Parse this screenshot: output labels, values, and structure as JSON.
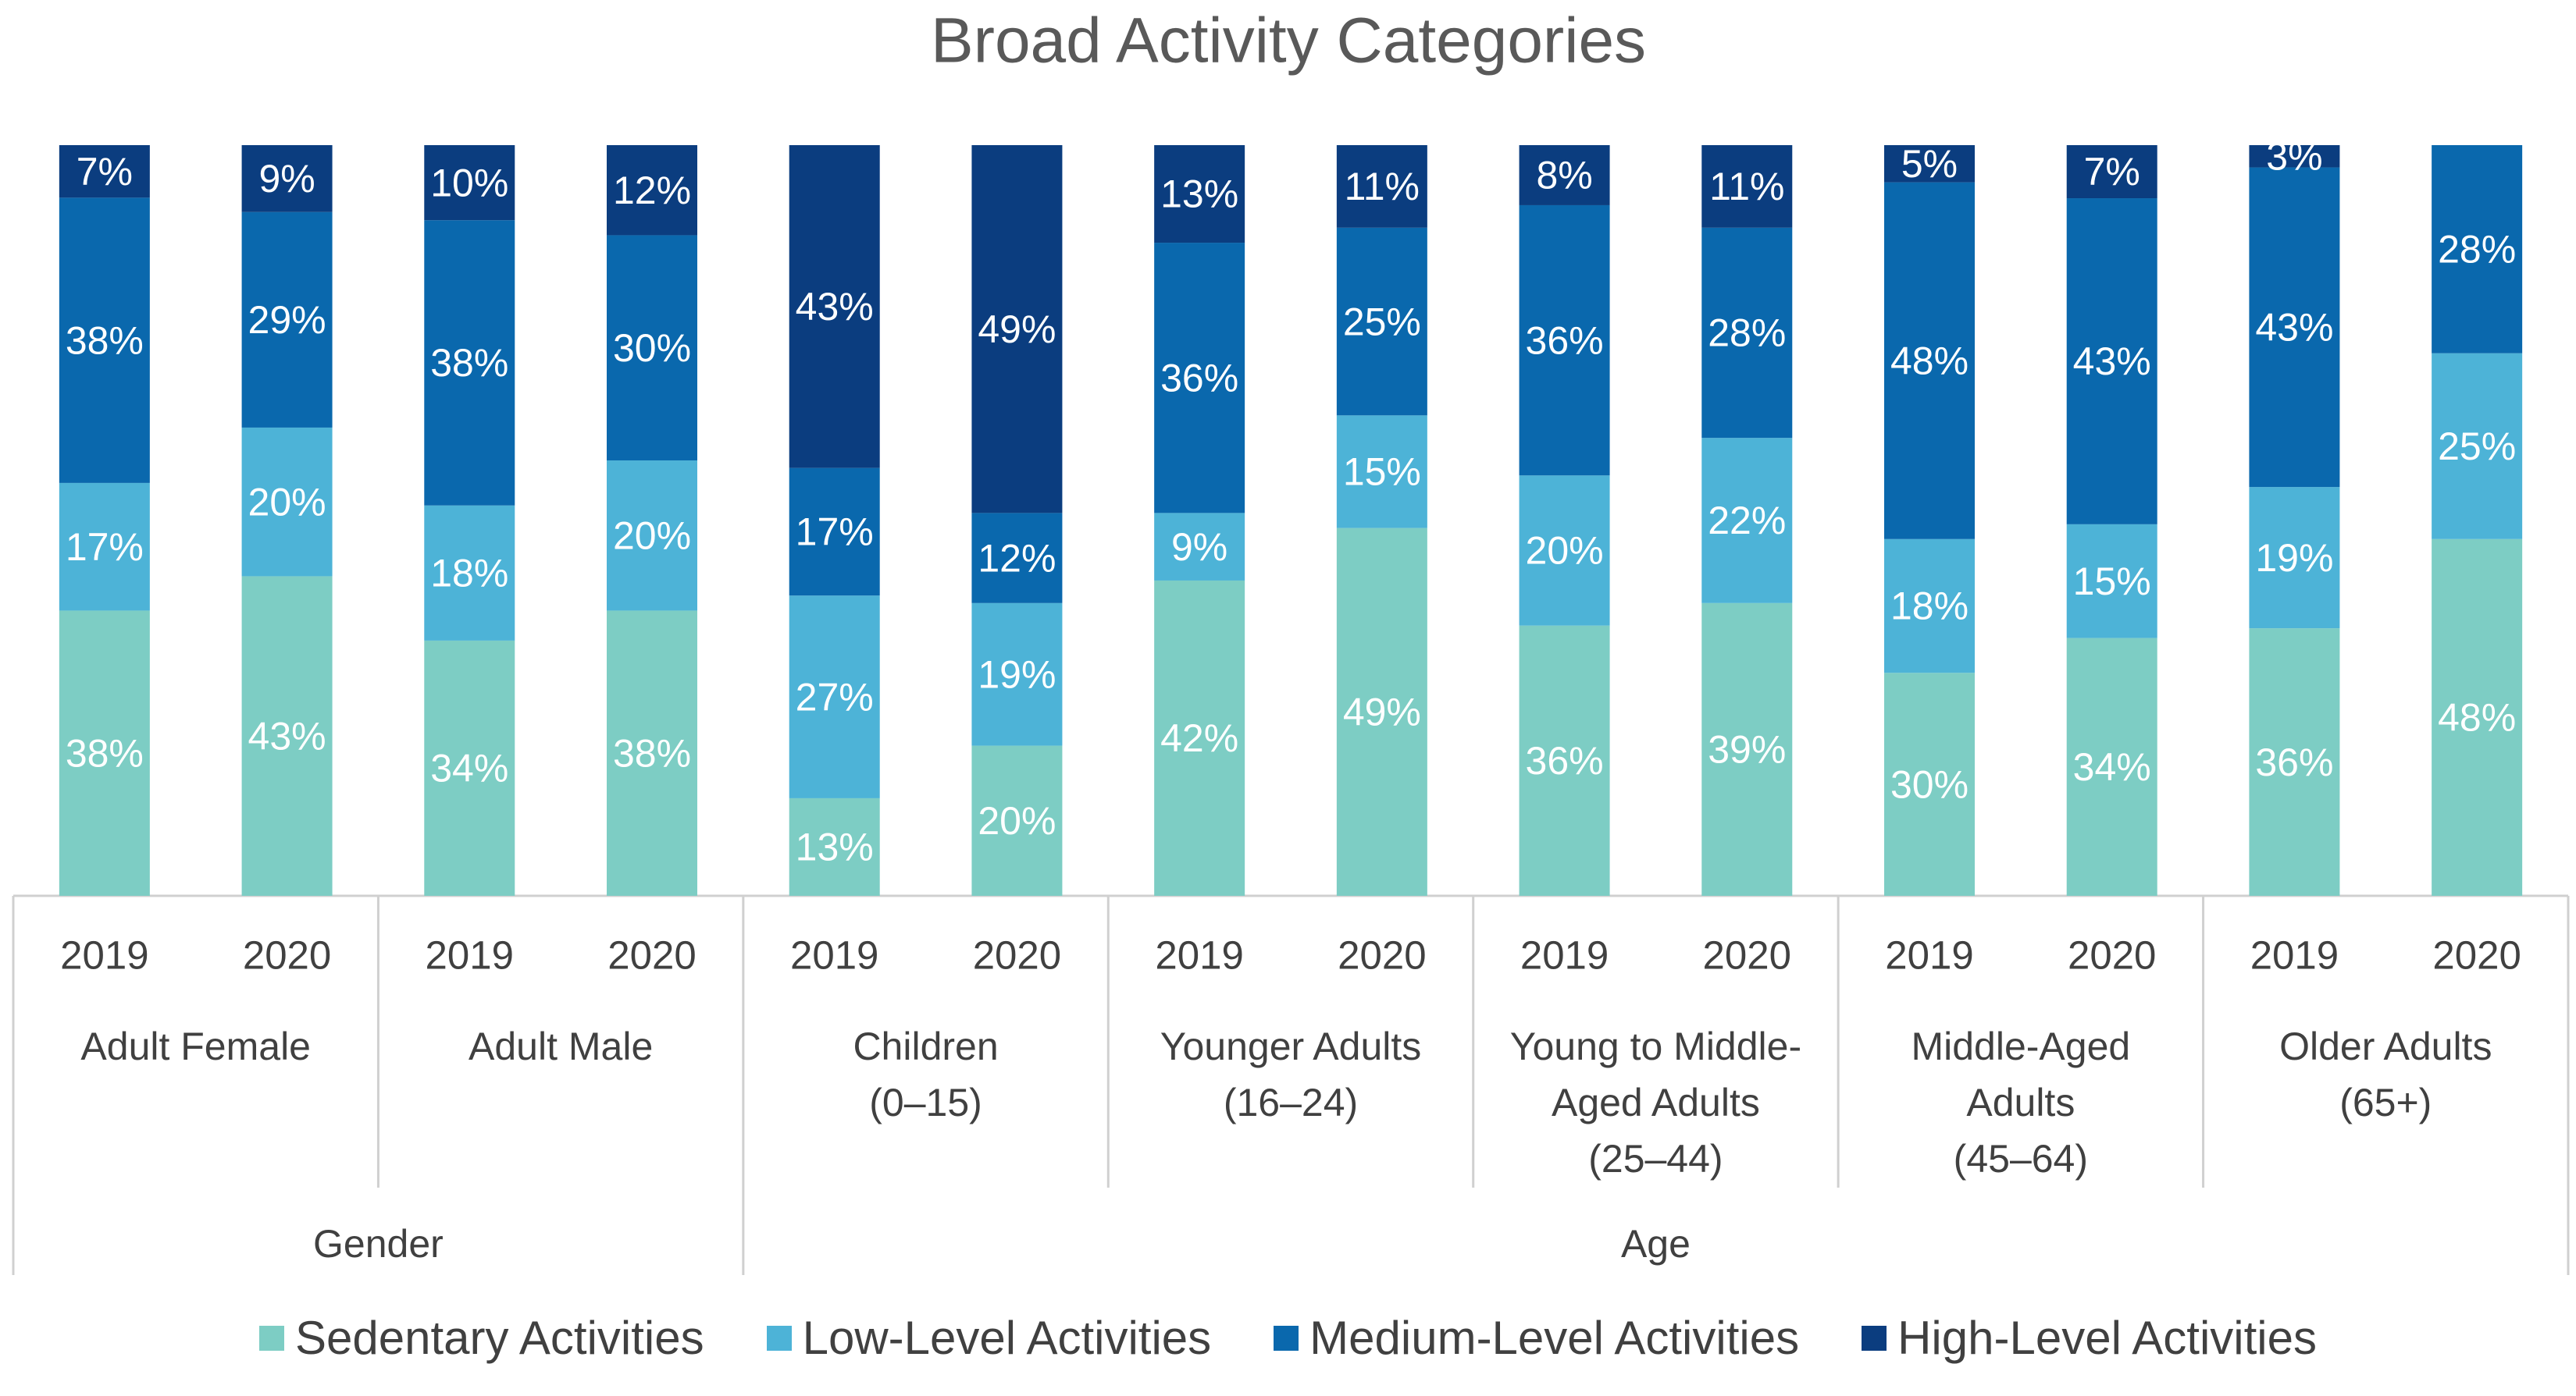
{
  "chart_data": {
    "type": "bar",
    "stacked": "percent",
    "title": "Broad Activity Categories",
    "groups": [
      {
        "name": "Gender",
        "subgroups": [
          {
            "name": "Adult Female",
            "categories": [
              "2019",
              "2020"
            ]
          },
          {
            "name": "Adult Male",
            "categories": [
              "2019",
              "2020"
            ]
          }
        ]
      },
      {
        "name": "Age",
        "subgroups": [
          {
            "name": "Children\n(0–15)",
            "categories": [
              "2019",
              "2020"
            ]
          },
          {
            "name": "Younger Adults\n(16–24)",
            "categories": [
              "2019",
              "2020"
            ]
          },
          {
            "name": "Young to Middle-\nAged Adults\n(25–44)",
            "categories": [
              "2019",
              "2020"
            ]
          },
          {
            "name": "Middle-Aged\nAdults\n(45–64)",
            "categories": [
              "2019",
              "2020"
            ]
          },
          {
            "name": "Older Adults\n(65+)",
            "categories": [
              "2019",
              "2020"
            ]
          }
        ]
      }
    ],
    "series": [
      {
        "name": "Sedentary Activities",
        "color": "#7dcdc4",
        "values": [
          38,
          43,
          34,
          38,
          13,
          20,
          42,
          49,
          36,
          39,
          30,
          34,
          36,
          48
        ],
        "value_labels": [
          "38%",
          "43%",
          "34%",
          "38%",
          "13%",
          "20%",
          "42%",
          "49%",
          "36%",
          "39%",
          "30%",
          "34%",
          "36%",
          "48%"
        ]
      },
      {
        "name": "Low-Level Activities",
        "color": "#4db3d7",
        "values": [
          17,
          20,
          18,
          20,
          27,
          19,
          9,
          15,
          20,
          22,
          18,
          15,
          19,
          25
        ],
        "value_labels": [
          "17%",
          "20%",
          "18%",
          "20%",
          "27%",
          "19%",
          "9%",
          "15%",
          "20%",
          "22%",
          "18%",
          "15%",
          "19%",
          "25%"
        ]
      },
      {
        "name": "Medium-Level Activities",
        "color": "#0a68ad",
        "values": [
          38,
          29,
          38,
          30,
          17,
          12,
          36,
          25,
          36,
          28,
          48,
          43,
          43,
          28
        ],
        "value_labels": [
          "38%",
          "29%",
          "38%",
          "30%",
          "17%",
          "12%",
          "36%",
          "25%",
          "36%",
          "28%",
          "48%",
          "43%",
          "43%",
          "28%"
        ]
      },
      {
        "name": "High-Level Activities",
        "color": "#0b3d7f",
        "values": [
          7,
          9,
          10,
          12,
          43,
          49,
          13,
          11,
          8,
          11,
          5,
          7,
          3,
          null
        ],
        "value_labels": [
          "7%",
          "9%",
          "10%",
          "12%",
          "43%",
          "49%",
          "13%",
          "11%",
          "8%",
          "11%",
          "5%",
          "7%",
          "3%",
          null
        ]
      }
    ],
    "legend": "bottom"
  }
}
